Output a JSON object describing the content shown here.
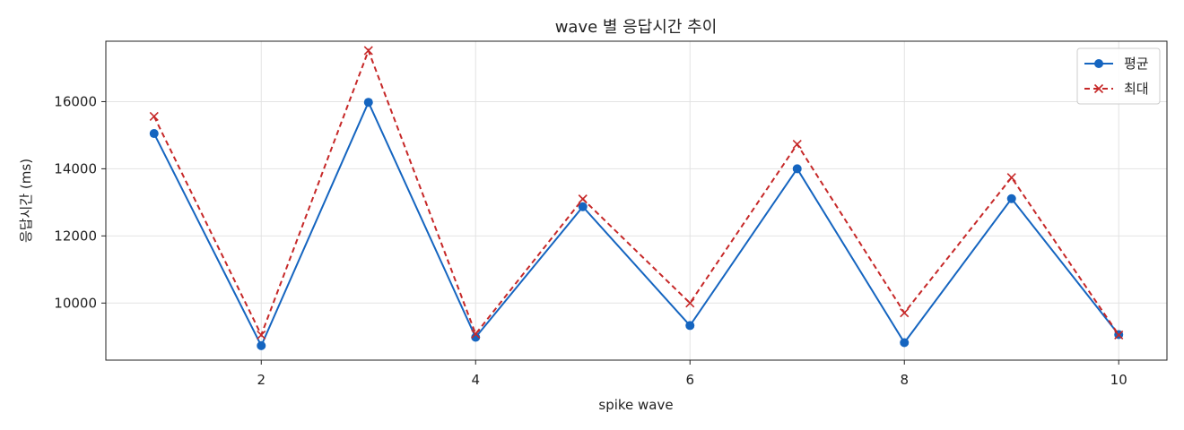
{
  "chart_data": {
    "type": "line",
    "title": "wave 별 응답시간 추이",
    "xlabel": "spike wave",
    "ylabel": "응답시간 (ms)",
    "x": [
      1,
      2,
      3,
      4,
      5,
      6,
      7,
      8,
      9,
      10
    ],
    "xlim": [
      0.55,
      10.45
    ],
    "ylim": [
      8300,
      17800
    ],
    "xticks": [
      2,
      4,
      6,
      8,
      10
    ],
    "yticks": [
      10000,
      12000,
      14000,
      16000
    ],
    "grid": true,
    "legend_position": "top-right",
    "series": [
      {
        "name": "평균",
        "values": [
          15050,
          8730,
          15980,
          8980,
          12870,
          9330,
          14000,
          8820,
          13110,
          9060
        ],
        "color": "#1565c0",
        "style": "solid",
        "marker": "circle"
      },
      {
        "name": "최대",
        "values": [
          15560,
          9050,
          17520,
          9080,
          13100,
          10000,
          14730,
          9710,
          13740,
          9050
        ],
        "color": "#c62828",
        "style": "dashed",
        "marker": "x"
      }
    ]
  }
}
